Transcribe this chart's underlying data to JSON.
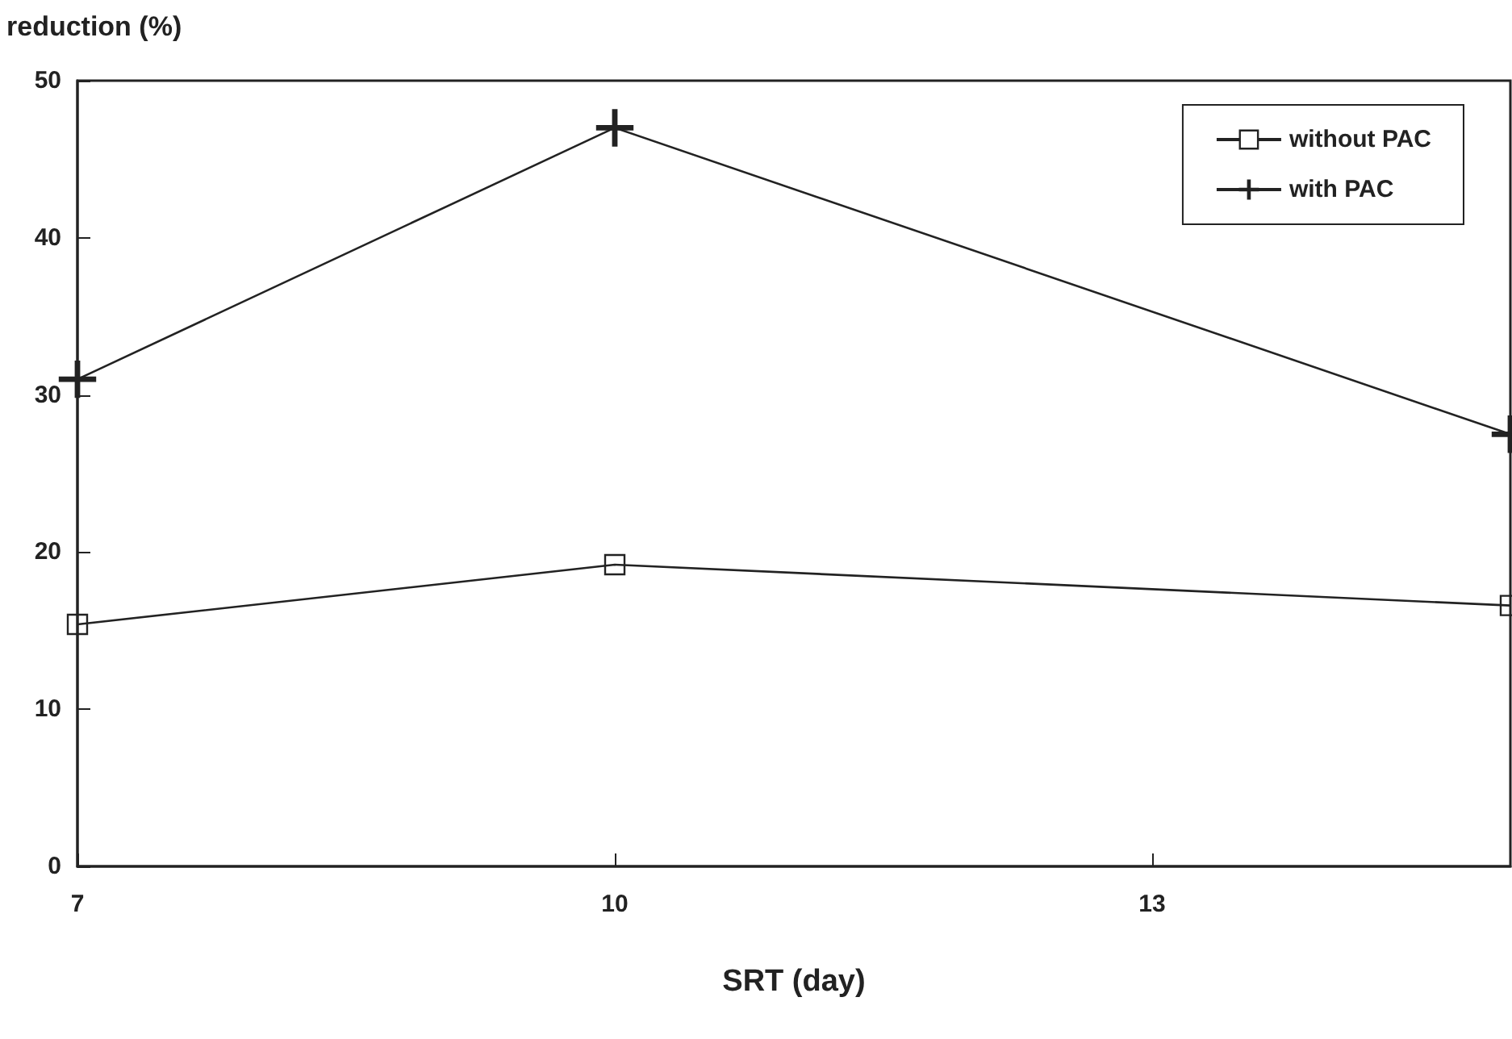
{
  "chart_data": {
    "type": "line",
    "xlabel": "SRT (day)",
    "ylabel": "reduction (%)",
    "x": [
      7,
      10,
      15
    ],
    "series": [
      {
        "name": "without PAC",
        "color": "#222222",
        "marker": "square",
        "values": [
          15.4,
          19.2,
          16.6
        ]
      },
      {
        "name": "with PAC",
        "color": "#222222",
        "marker": "cross",
        "values": [
          31,
          47,
          27.5
        ]
      }
    ],
    "xlim": [
      7,
      15
    ],
    "xticks": [
      7,
      10,
      13
    ],
    "ylim": [
      0,
      50
    ],
    "yticks": [
      0,
      10,
      20,
      30,
      40,
      50
    ],
    "grid": false,
    "legend": "top right",
    "line_style": "solid"
  }
}
